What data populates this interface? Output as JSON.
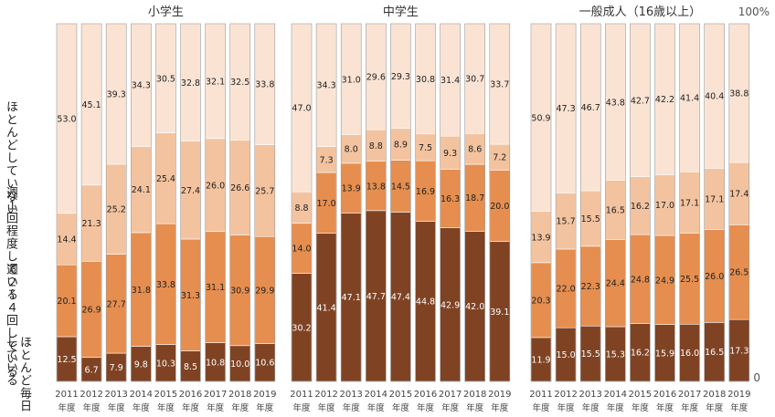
{
  "chart_data": {
    "type": "bar",
    "stacked": true,
    "normalized_percent": true,
    "axis_top_label": "100%",
    "axis_bottom_label": "0",
    "categories": [
      "2011",
      "2012",
      "2013",
      "2014",
      "2015",
      "2016",
      "2017",
      "2018",
      "2019"
    ],
    "category_suffix": "年度",
    "legend_labels": [
      "ほとんど毎日している",
      "週２～４回している",
      "週１回程度している",
      "ほとんどしていない"
    ],
    "colors": [
      "#7f4324",
      "#e58e4f",
      "#f3c39f",
      "#fbe3d3"
    ],
    "panels": [
      {
        "title": "小学生",
        "series": [
          {
            "values": [
              12.5,
              6.7,
              7.9,
              9.8,
              10.3,
              8.5,
              10.8,
              10.0,
              10.6
            ]
          },
          {
            "values": [
              20.1,
              26.9,
              27.7,
              31.8,
              33.8,
              31.3,
              31.1,
              30.9,
              29.9
            ]
          },
          {
            "values": [
              14.4,
              21.3,
              25.2,
              24.1,
              25.4,
              27.4,
              26.0,
              26.6,
              25.7
            ]
          },
          {
            "values": [
              53.0,
              45.1,
              39.3,
              34.3,
              30.5,
              32.8,
              32.1,
              32.5,
              33.8
            ]
          }
        ]
      },
      {
        "title": "中学生",
        "series": [
          {
            "values": [
              30.2,
              41.4,
              47.1,
              47.7,
              47.4,
              44.8,
              42.9,
              42.0,
              39.1
            ]
          },
          {
            "values": [
              14.0,
              17.0,
              13.9,
              13.8,
              14.5,
              16.9,
              16.3,
              18.7,
              20.0
            ]
          },
          {
            "values": [
              8.8,
              7.3,
              8.0,
              8.8,
              8.9,
              7.5,
              9.3,
              8.6,
              7.2
            ]
          },
          {
            "values": [
              47.0,
              34.3,
              31.0,
              29.6,
              29.3,
              30.8,
              31.4,
              30.7,
              33.7
            ]
          }
        ]
      },
      {
        "title": "一般成人（16歳以上）",
        "series": [
          {
            "values": [
              11.9,
              15.0,
              15.5,
              15.3,
              16.2,
              15.9,
              16.0,
              16.5,
              17.3
            ]
          },
          {
            "values": [
              20.3,
              22.0,
              22.3,
              24.4,
              24.8,
              24.9,
              25.5,
              26.0,
              26.5
            ]
          },
          {
            "values": [
              13.9,
              15.7,
              15.5,
              16.5,
              16.2,
              17.0,
              17.1,
              17.1,
              17.4
            ]
          },
          {
            "values": [
              50.9,
              47.3,
              46.7,
              43.8,
              42.7,
              42.2,
              41.4,
              40.4,
              38.8
            ]
          }
        ]
      }
    ]
  }
}
